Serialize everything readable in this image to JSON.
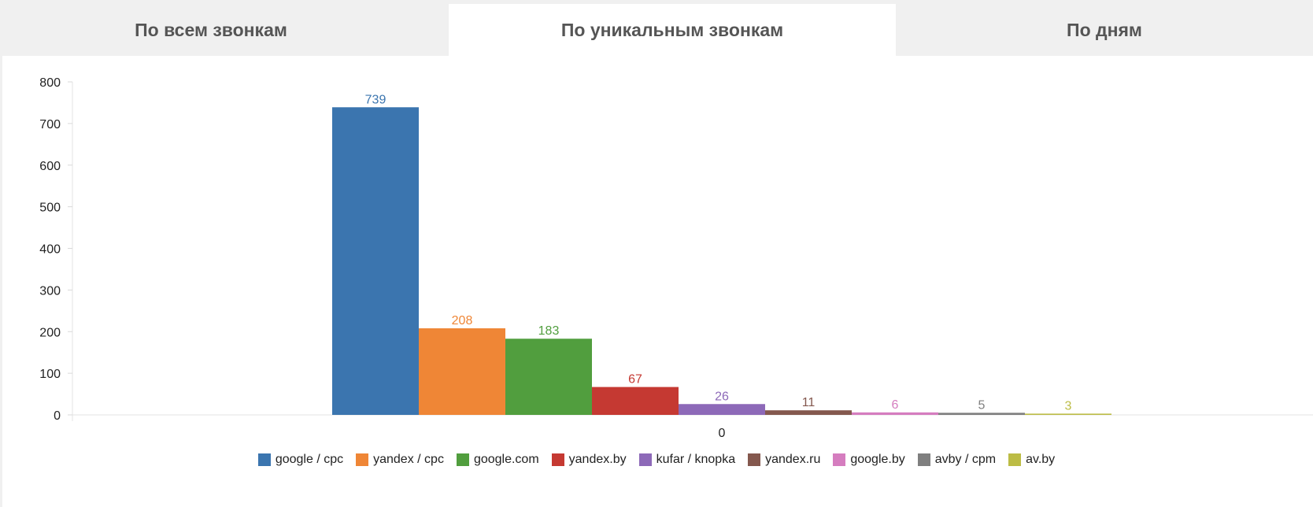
{
  "tabs": [
    {
      "label": "По всем звонкам",
      "active": false
    },
    {
      "label": "По уникальным звонкам",
      "active": true
    },
    {
      "label": "По дням",
      "active": false
    }
  ],
  "chart_data": {
    "type": "bar",
    "categories": [
      "0"
    ],
    "series": [
      {
        "name": "google / cpc",
        "values": [
          739
        ],
        "color": "#3b75af"
      },
      {
        "name": "yandex / cpc",
        "values": [
          208
        ],
        "color": "#ef8636"
      },
      {
        "name": "google.com",
        "values": [
          183
        ],
        "color": "#519e3e"
      },
      {
        "name": "yandex.by",
        "values": [
          67
        ],
        "color": "#c53932"
      },
      {
        "name": "kufar / knopka",
        "values": [
          26
        ],
        "color": "#8d69b8"
      },
      {
        "name": "yandex.ru",
        "values": [
          11
        ],
        "color": "#84584e"
      },
      {
        "name": "google.by",
        "values": [
          6
        ],
        "color": "#d57dbf"
      },
      {
        "name": "avby / cpm",
        "values": [
          5
        ],
        "color": "#7f7f7f"
      },
      {
        "name": "av.by",
        "values": [
          3
        ],
        "color": "#bcbc45"
      }
    ],
    "yticks": [
      0,
      100,
      200,
      300,
      400,
      500,
      600,
      700,
      800
    ],
    "ylim": [
      0,
      800
    ],
    "title": "",
    "xlabel": "",
    "ylabel": "",
    "legend": "bottom"
  }
}
